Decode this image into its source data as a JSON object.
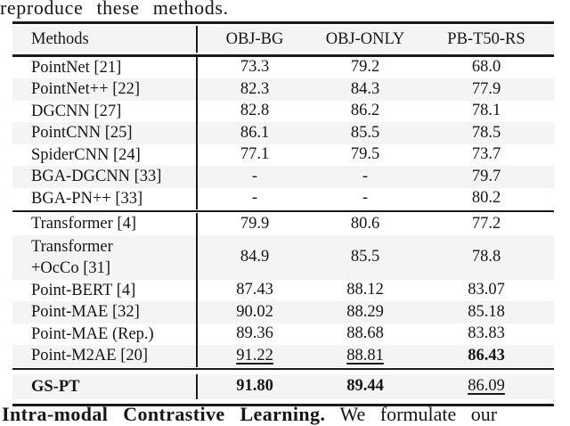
{
  "colors": {
    "shaded_row": "#f4f4f4",
    "rule": "#1a1a1a",
    "text": "#161616",
    "background": "#ffffff"
  },
  "context": {
    "text_above": "reproduce these methods.",
    "text_below_bold": "Intra-modal Contrastive Learning.",
    "text_below_regular": "We formulate our"
  },
  "table": {
    "columns": [
      "Methods",
      "OBJ-BG",
      "OBJ-ONLY",
      "PB-T50-RS"
    ],
    "groups": [
      {
        "rows": [
          {
            "method": "PointNet [21]",
            "shaded": false,
            "values": [
              {
                "t": "73.3"
              },
              {
                "t": "79.2"
              },
              {
                "t": "68.0"
              }
            ]
          },
          {
            "method": "PointNet++ [22]",
            "shaded": true,
            "values": [
              {
                "t": "82.3"
              },
              {
                "t": "84.3"
              },
              {
                "t": "77.9"
              }
            ]
          },
          {
            "method": "DGCNN [27]",
            "shaded": false,
            "values": [
              {
                "t": "82.8"
              },
              {
                "t": "86.2"
              },
              {
                "t": "78.1"
              }
            ]
          },
          {
            "method": "PointCNN [25]",
            "shaded": true,
            "values": [
              {
                "t": "86.1"
              },
              {
                "t": "85.5"
              },
              {
                "t": "78.5"
              }
            ]
          },
          {
            "method": "SpiderCNN [24]",
            "shaded": false,
            "values": [
              {
                "t": "77.1"
              },
              {
                "t": "79.5"
              },
              {
                "t": "73.7"
              }
            ]
          },
          {
            "method": "BGA-DGCNN [33]",
            "shaded": true,
            "values": [
              {
                "t": "-"
              },
              {
                "t": "-"
              },
              {
                "t": "79.7"
              }
            ]
          },
          {
            "method": "BGA-PN++ [33]",
            "shaded": false,
            "values": [
              {
                "t": "-"
              },
              {
                "t": "-"
              },
              {
                "t": "80.2"
              }
            ]
          }
        ]
      },
      {
        "rows": [
          {
            "method": "Transformer [4]",
            "shaded": false,
            "values": [
              {
                "t": "79.9"
              },
              {
                "t": "80.6"
              },
              {
                "t": "77.2"
              }
            ]
          },
          {
            "method": [
              "Transformer",
              "+OcCo [31]"
            ],
            "shaded": true,
            "values": [
              {
                "t": "84.9"
              },
              {
                "t": "85.5"
              },
              {
                "t": "78.8"
              }
            ]
          },
          {
            "method": "Point-BERT [4]",
            "shaded": false,
            "values": [
              {
                "t": "87.43"
              },
              {
                "t": "88.12"
              },
              {
                "t": "83.07"
              }
            ]
          },
          {
            "method": "Point-MAE [32]",
            "shaded": true,
            "values": [
              {
                "t": "90.02"
              },
              {
                "t": "88.29"
              },
              {
                "t": "85.18"
              }
            ]
          },
          {
            "method": "Point-MAE (Rep.)",
            "shaded": false,
            "values": [
              {
                "t": "89.36"
              },
              {
                "t": "88.68"
              },
              {
                "t": "83.83"
              }
            ]
          },
          {
            "method": "Point-M2AE [20]",
            "shaded": true,
            "values": [
              {
                "t": "91.22",
                "u": true
              },
              {
                "t": "88.81",
                "u": true
              },
              {
                "t": "86.43",
                "b": true
              }
            ]
          }
        ]
      },
      {
        "rows": [
          {
            "method": "GS-PT",
            "bold": true,
            "shaded": true,
            "values": [
              {
                "t": "91.80",
                "b": true
              },
              {
                "t": "89.44",
                "b": true
              },
              {
                "t": "86.09",
                "u": true
              }
            ]
          }
        ]
      }
    ]
  }
}
